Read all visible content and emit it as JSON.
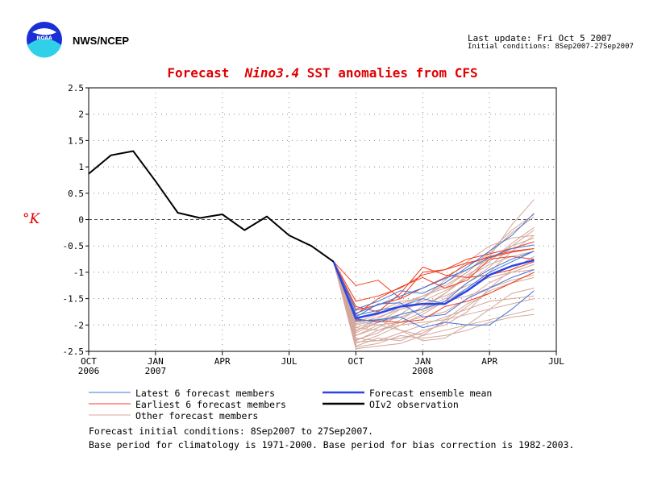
{
  "header": {
    "logo_text": "NOAA",
    "agency": "NWS/NCEP",
    "last_update": "Last update: Fri Oct 5 2007",
    "initial_conditions_short": "Initial conditions: 8Sep2007-27Sep2007"
  },
  "chart_data": {
    "type": "line",
    "title_prefix": "Forecast",
    "title_region": "Nino3.4",
    "title_suffix": "SST anomalies from CFS",
    "ylabel": "°K",
    "ylim": [
      -2.5,
      2.5
    ],
    "yticks": [
      2.5,
      2,
      1.5,
      1,
      0.5,
      0,
      -0.5,
      -1,
      -1.5,
      -2,
      -2.5
    ],
    "ytick_labels": [
      "2.5",
      "2",
      "1.5",
      "1",
      "0.5",
      "0",
      "-0.5",
      "-1",
      "-1.5",
      "-2",
      "-2.5"
    ],
    "xlim": [
      0,
      21
    ],
    "xticks": [
      {
        "pos": 0,
        "label": "OCT",
        "year": "2006"
      },
      {
        "pos": 3,
        "label": "JAN",
        "year": "2007"
      },
      {
        "pos": 6,
        "label": "APR",
        "year": ""
      },
      {
        "pos": 9,
        "label": "JUL",
        "year": ""
      },
      {
        "pos": 12,
        "label": "OCT",
        "year": ""
      },
      {
        "pos": 15,
        "label": "JAN",
        "year": "2008"
      },
      {
        "pos": 18,
        "label": "APR",
        "year": ""
      },
      {
        "pos": 21,
        "label": "JUL",
        "year": ""
      }
    ],
    "grid": true,
    "zero_line": true,
    "colors": {
      "latest": "#3f74d8",
      "earliest": "#ee3b1c",
      "other": "#d4a79b",
      "mean": "#2b45e8",
      "observation": "#000000",
      "title": "#e00000"
    },
    "observation": {
      "name": "OIv2 observation",
      "x": [
        0,
        1,
        2,
        3,
        4,
        5,
        6,
        7,
        8,
        9,
        10,
        11
      ],
      "y": [
        0.87,
        1.22,
        1.3,
        0.73,
        0.13,
        0.03,
        0.1,
        -0.2,
        0.06,
        -0.3,
        -0.5,
        -0.8
      ]
    },
    "ensemble_mean": {
      "name": "Forecast ensemble mean",
      "x": [
        11,
        12,
        13,
        14,
        15,
        16,
        17,
        18,
        19,
        20
      ],
      "y": [
        -0.8,
        -1.87,
        -1.78,
        -1.65,
        -1.6,
        -1.6,
        -1.35,
        -1.05,
        -0.88,
        -0.77
      ]
    },
    "series": [
      {
        "group": "latest",
        "name": "Latest 6 forecast members",
        "x_start": 11,
        "values": [
          -0.8,
          -1.78,
          -1.62,
          -1.45,
          -1.3,
          -1.12,
          -0.95,
          -0.72,
          -0.55,
          -0.48
        ]
      },
      {
        "group": "latest",
        "name": "Latest 6 forecast members",
        "x_start": 11,
        "values": [
          -0.8,
          -1.88,
          -1.95,
          -1.8,
          -1.7,
          -1.55,
          -1.2,
          -0.95,
          -0.75,
          -0.6
        ]
      },
      {
        "group": "latest",
        "name": "Latest 6 forecast members",
        "x_start": 11,
        "values": [
          -0.8,
          -1.7,
          -1.55,
          -1.35,
          -1.4,
          -1.2,
          -0.9,
          -0.6,
          -0.3,
          0.12
        ]
      },
      {
        "group": "latest",
        "name": "Latest 6 forecast members",
        "x_start": 11,
        "values": [
          -0.8,
          -1.92,
          -1.9,
          -1.85,
          -2.05,
          -1.95,
          -2.0,
          -2.0,
          -1.7,
          -1.35
        ]
      },
      {
        "group": "latest",
        "name": "Latest 6 forecast members",
        "x_start": 11,
        "values": [
          -0.8,
          -1.82,
          -1.72,
          -1.65,
          -1.5,
          -1.6,
          -1.3,
          -1.0,
          -0.8,
          -0.6
        ]
      },
      {
        "group": "latest",
        "name": "Latest 6 forecast members",
        "x_start": 11,
        "values": [
          -0.8,
          -1.85,
          -1.6,
          -1.58,
          -1.85,
          -1.8,
          -1.5,
          -1.3,
          -1.1,
          -0.95
        ]
      },
      {
        "group": "earliest",
        "name": "Earliest 6 forecast members",
        "x_start": 11,
        "values": [
          -0.8,
          -1.25,
          -1.15,
          -1.5,
          -1.0,
          -0.95,
          -0.75,
          -0.65,
          -0.55,
          -0.42
        ]
      },
      {
        "group": "earliest",
        "name": "Earliest 6 forecast members",
        "x_start": 11,
        "values": [
          -0.8,
          -1.72,
          -1.62,
          -1.5,
          -1.3,
          -1.1,
          -0.85,
          -0.7,
          -0.6,
          -0.55
        ]
      },
      {
        "group": "earliest",
        "name": "Earliest 6 forecast members",
        "x_start": 11,
        "values": [
          -0.8,
          -1.9,
          -1.92,
          -1.95,
          -1.9,
          -1.65,
          -1.55,
          -1.4,
          -1.2,
          -1.0
        ]
      },
      {
        "group": "earliest",
        "name": "Earliest 6 forecast members",
        "x_start": 11,
        "values": [
          -0.8,
          -1.55,
          -1.45,
          -1.3,
          -1.05,
          -0.95,
          -0.82,
          -0.72,
          -0.62,
          -0.55
        ]
      },
      {
        "group": "earliest",
        "name": "Earliest 6 forecast members",
        "x_start": 11,
        "values": [
          -0.8,
          -1.8,
          -1.5,
          -1.28,
          -1.1,
          -1.3,
          -1.15,
          -0.75,
          -0.7,
          -0.75
        ]
      },
      {
        "group": "earliest",
        "name": "Earliest 6 forecast members",
        "x_start": 11,
        "values": [
          -0.8,
          -1.65,
          -1.75,
          -1.4,
          -0.9,
          -1.05,
          -1.1,
          -1.05,
          -0.95,
          -0.8
        ]
      },
      {
        "group": "other",
        "name": "Other forecast members",
        "x_start": 11,
        "values": [
          -0.8,
          -2.0,
          -1.9,
          -1.8,
          -1.7,
          -1.5,
          -1.2,
          -0.9,
          -0.5,
          -0.2
        ]
      },
      {
        "group": "other",
        "name": "Other forecast members",
        "x_start": 11,
        "values": [
          -0.8,
          -2.3,
          -2.1,
          -1.95,
          -1.85,
          -1.75,
          -1.5,
          -1.2,
          -1.0,
          -0.85
        ]
      },
      {
        "group": "other",
        "name": "Other forecast members",
        "x_start": 11,
        "values": [
          -0.8,
          -2.45,
          -2.4,
          -2.35,
          -2.2,
          -2.1,
          -2.0,
          -1.9,
          -1.8,
          -1.7
        ]
      },
      {
        "group": "other",
        "name": "Other forecast members",
        "x_start": 11,
        "values": [
          -0.8,
          -2.2,
          -2.0,
          -2.1,
          -2.3,
          -2.25,
          -2.0,
          -1.7,
          -1.4,
          -1.3
        ]
      },
      {
        "group": "other",
        "name": "Other forecast members",
        "x_start": 11,
        "values": [
          -0.8,
          -1.95,
          -1.8,
          -1.6,
          -1.45,
          -1.3,
          -1.0,
          -0.6,
          -0.2,
          0.1
        ]
      },
      {
        "group": "other",
        "name": "Other forecast members",
        "x_start": 11,
        "values": [
          -0.8,
          -2.1,
          -1.95,
          -1.85,
          -1.7,
          -1.4,
          -1.1,
          -0.7,
          -0.1,
          0.38
        ]
      },
      {
        "group": "other",
        "name": "Other forecast members",
        "x_start": 11,
        "values": [
          -0.8,
          -2.35,
          -2.2,
          -2.0,
          -1.8,
          -1.55,
          -1.3,
          -1.0,
          -0.6,
          -0.3
        ]
      },
      {
        "group": "other",
        "name": "Other forecast members",
        "x_start": 11,
        "values": [
          -0.8,
          -2.05,
          -1.9,
          -2.1,
          -2.2,
          -1.9,
          -1.6,
          -1.4,
          -1.2,
          -1.1
        ]
      },
      {
        "group": "other",
        "name": "Other forecast members",
        "x_start": 11,
        "values": [
          -0.8,
          -1.9,
          -1.75,
          -1.55,
          -1.5,
          -1.2,
          -0.95,
          -0.75,
          -0.5,
          -0.35
        ]
      },
      {
        "group": "other",
        "name": "Other forecast members",
        "x_start": 11,
        "values": [
          -0.8,
          -2.25,
          -2.3,
          -2.15,
          -2.0,
          -1.85,
          -1.7,
          -1.55,
          -1.5,
          -1.45
        ]
      },
      {
        "group": "other",
        "name": "Other forecast members",
        "x_start": 11,
        "values": [
          -0.8,
          -2.15,
          -1.95,
          -1.7,
          -1.55,
          -1.35,
          -1.1,
          -0.85,
          -0.7,
          -0.6
        ]
      },
      {
        "group": "other",
        "name": "Other forecast members",
        "x_start": 11,
        "values": [
          -0.8,
          -2.4,
          -2.25,
          -2.3,
          -2.1,
          -2.0,
          -1.75,
          -1.3,
          -0.95,
          -0.7
        ]
      },
      {
        "group": "other",
        "name": "Other forecast members",
        "x_start": 11,
        "values": [
          -0.8,
          -1.98,
          -1.85,
          -1.7,
          -1.6,
          -1.45,
          -1.25,
          -1.1,
          -1.0,
          -0.95
        ]
      },
      {
        "group": "other",
        "name": "Other forecast members",
        "x_start": 11,
        "values": [
          -0.8,
          -2.28,
          -2.15,
          -1.9,
          -1.65,
          -1.4,
          -1.05,
          -0.8,
          -0.45,
          -0.15
        ]
      },
      {
        "group": "other",
        "name": "Other forecast members",
        "x_start": 11,
        "values": [
          -0.8,
          -2.05,
          -2.1,
          -2.0,
          -1.95,
          -1.9,
          -1.8,
          -1.7,
          -1.6,
          -1.5
        ]
      },
      {
        "group": "other",
        "name": "Other forecast members",
        "x_start": 11,
        "values": [
          -0.8,
          -2.2,
          -2.05,
          -1.8,
          -1.5,
          -1.15,
          -0.8,
          -0.5,
          -0.35,
          -0.3
        ]
      },
      {
        "group": "other",
        "name": "Other forecast members",
        "x_start": 11,
        "values": [
          -0.8,
          -1.92,
          -2.0,
          -1.95,
          -1.75,
          -1.55,
          -1.45,
          -1.3,
          -1.15,
          -1.05
        ]
      },
      {
        "group": "other",
        "name": "Other forecast members",
        "x_start": 11,
        "values": [
          -0.8,
          -2.32,
          -2.3,
          -2.25,
          -2.15,
          -1.95,
          -1.65,
          -1.35,
          -1.2,
          -1.0
        ]
      },
      {
        "group": "other",
        "name": "Other forecast members",
        "x_start": 11,
        "values": [
          -0.8,
          -2.12,
          -1.88,
          -1.65,
          -1.45,
          -1.25,
          -1.0,
          -0.65,
          -0.25,
          0.05
        ]
      },
      {
        "group": "other",
        "name": "Other forecast members",
        "x_start": 11,
        "values": [
          -0.8,
          -2.42,
          -2.35,
          -2.2,
          -2.25,
          -2.2,
          -2.1,
          -1.95,
          -1.85,
          -1.8
        ]
      }
    ],
    "legend": [
      {
        "group": "latest",
        "label": "Latest 6 forecast members"
      },
      {
        "group": "earliest",
        "label": "Earliest 6 forecast members"
      },
      {
        "group": "other",
        "label": "Other forecast members"
      },
      {
        "group": "mean",
        "label": "Forecast ensemble mean"
      },
      {
        "group": "observation",
        "label": "OIv2 observation"
      }
    ]
  },
  "footer": {
    "line1": "Forecast initial conditions: 8Sep2007 to 27Sep2007.",
    "line2": "Base period for climatology is 1971-2000. Base period for bias correction is 1982-2003."
  }
}
